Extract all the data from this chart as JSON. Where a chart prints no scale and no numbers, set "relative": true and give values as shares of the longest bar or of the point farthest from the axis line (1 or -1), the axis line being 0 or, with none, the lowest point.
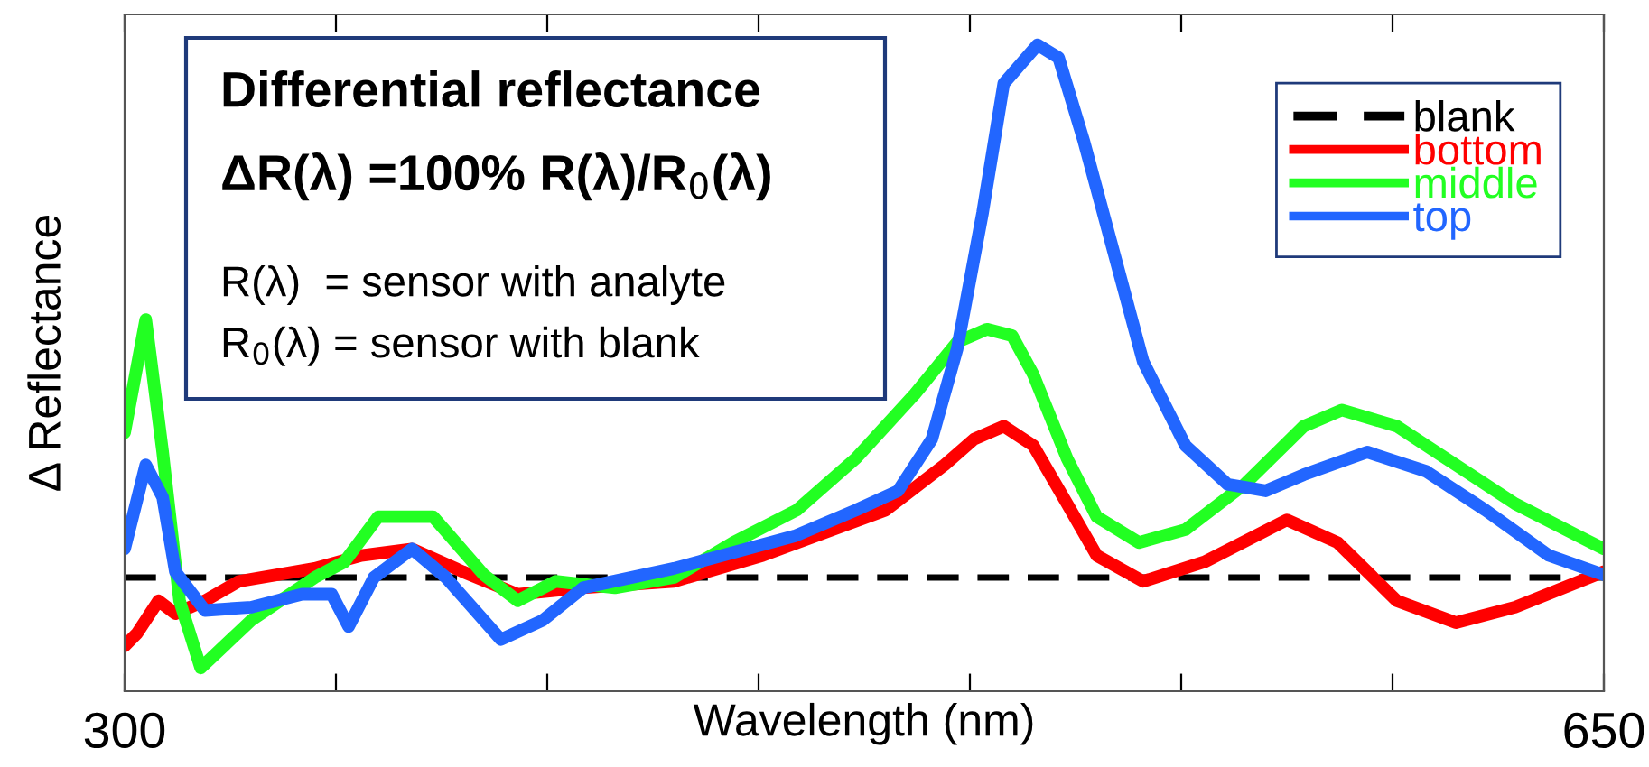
{
  "chart_data": {
    "type": "line",
    "relative": true,
    "xlabel": "Wavelength (nm)",
    "ylabel": "Δ Reflectance",
    "xlim": [
      300,
      650
    ],
    "xticks": [
      300,
      {
        "value": 350,
        "label": null
      },
      {
        "value": 400,
        "label": null
      },
      {
        "value": 450,
        "label": null
      },
      {
        "value": 500,
        "label": null
      },
      {
        "value": 550,
        "label": null
      },
      {
        "value": 600,
        "label": null
      },
      650
    ],
    "grid": false,
    "legend": "top right",
    "marker": "none",
    "annotations": [
      "Differential reflectance",
      "ΔR(λ) =100% R(λ)/R$_{0}$(λ)",
      "R(λ)  = sensor with analyte",
      "R$_{0}$(λ) = sensor with blank"
    ],
    "series": [
      {
        "name": "blank",
        "color": "#000000",
        "line_style": "dashed",
        "x": [
          300,
          650
        ],
        "values": [
          0.176,
          0.176
        ]
      },
      {
        "name": "bottom",
        "color": "#ff0000",
        "line_style": "solid",
        "x": [
          300,
          303,
          308,
          312,
          319,
          327,
          345,
          356,
          368,
          380,
          393,
          408.5,
          430,
          451,
          480,
          494,
          501,
          508,
          515,
          523,
          530,
          541,
          555.5,
          575,
          587,
          601,
          615,
          629,
          650
        ],
        "values": [
          0.07,
          0.09,
          0.14,
          0.12,
          0.14,
          0.17,
          0.19,
          0.21,
          0.22,
          0.185,
          0.15,
          0.16,
          0.17,
          0.21,
          0.28,
          0.35,
          0.39,
          0.41,
          0.38,
          0.29,
          0.21,
          0.17,
          0.2,
          0.265,
          0.23,
          0.14,
          0.106,
          0.13,
          0.185
        ]
      },
      {
        "name": "middle",
        "color": "#22ff22",
        "line_style": "solid",
        "x": [
          300,
          305,
          309,
          313,
          318,
          330,
          345,
          352,
          360,
          367,
          373,
          385,
          393,
          402,
          416,
          430,
          444,
          459,
          473,
          487,
          497,
          504,
          510,
          515,
          523,
          530,
          540,
          551,
          565,
          579,
          588,
          601,
          615,
          629,
          644,
          650
        ],
        "values": [
          0.4,
          0.575,
          0.37,
          0.14,
          0.036,
          0.11,
          0.176,
          0.2,
          0.27,
          0.27,
          0.27,
          0.18,
          0.14,
          0.17,
          0.16,
          0.176,
          0.23,
          0.28,
          0.36,
          0.46,
          0.54,
          0.56,
          0.55,
          0.49,
          0.36,
          0.27,
          0.23,
          0.25,
          0.32,
          0.41,
          0.435,
          0.41,
          0.35,
          0.29,
          0.24,
          0.22
        ]
      },
      {
        "name": "top",
        "color": "#2266ff",
        "line_style": "solid",
        "x": [
          300,
          305,
          309,
          312,
          319,
          330,
          342,
          349,
          353,
          359,
          368,
          376,
          389,
          399,
          408.5,
          430,
          458.5,
          473,
          483,
          491,
          497,
          503,
          508,
          516,
          521,
          527,
          534,
          541,
          551,
          561,
          570,
          579,
          594,
          608,
          622,
          637,
          650
        ],
        "values": [
          0.22,
          0.35,
          0.3,
          0.185,
          0.125,
          0.13,
          0.15,
          0.15,
          0.1,
          0.176,
          0.22,
          0.176,
          0.08,
          0.11,
          0.16,
          0.19,
          0.24,
          0.28,
          0.31,
          0.39,
          0.53,
          0.74,
          0.94,
          1.0,
          0.98,
          0.85,
          0.68,
          0.51,
          0.38,
          0.32,
          0.31,
          0.335,
          0.37,
          0.34,
          0.28,
          0.21,
          0.18
        ]
      }
    ]
  }
}
